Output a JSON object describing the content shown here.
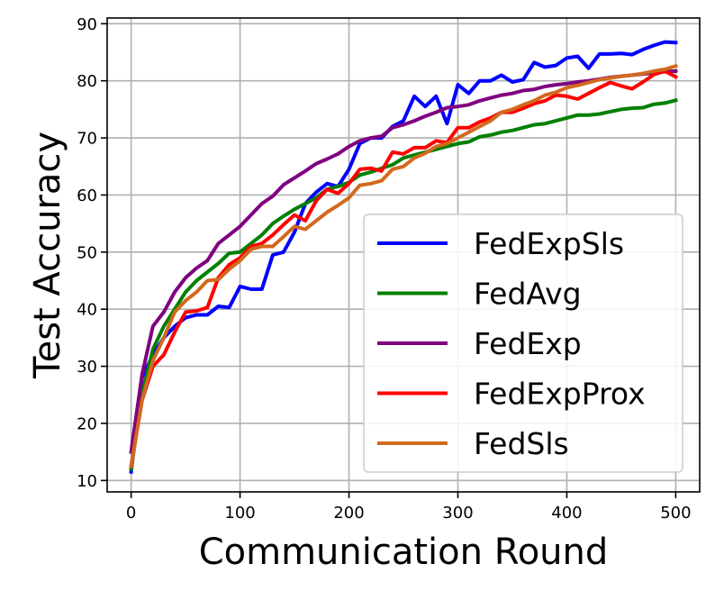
{
  "chart_data": {
    "type": "line",
    "xlabel": "Communication Round",
    "ylabel": "Test Accuracy",
    "xlim": [
      -22,
      522
    ],
    "ylim": [
      8,
      91
    ],
    "xticks": [
      0,
      100,
      200,
      300,
      400,
      500
    ],
    "yticks": [
      10,
      20,
      30,
      40,
      50,
      60,
      70,
      80,
      90
    ],
    "grid": true,
    "legend_position": "lower-right",
    "x": [
      0,
      10,
      20,
      30,
      40,
      50,
      60,
      70,
      80,
      90,
      100,
      110,
      120,
      130,
      140,
      150,
      160,
      170,
      180,
      190,
      200,
      210,
      220,
      230,
      240,
      250,
      260,
      270,
      280,
      290,
      300,
      310,
      320,
      330,
      340,
      350,
      360,
      370,
      380,
      390,
      400,
      410,
      420,
      430,
      440,
      450,
      460,
      470,
      480,
      490,
      500
    ],
    "series": [
      {
        "name": "FedExpSls",
        "color": "#0000ff",
        "values": [
          11.5,
          28,
          32,
          35,
          37,
          38.5,
          39,
          39,
          40.5,
          40.3,
          44,
          43.5,
          43.5,
          49.5,
          50,
          53.5,
          58.5,
          60.5,
          62,
          61.5,
          64.5,
          69,
          70,
          70,
          72,
          73,
          77.3,
          75.5,
          77.3,
          72.5,
          79.3,
          77.8,
          80,
          80,
          81,
          79.8,
          80.2,
          83.2,
          82.4,
          82.7,
          84,
          84.3,
          82.2,
          84.7,
          84.7,
          84.8,
          84.6,
          85.5,
          86.2,
          86.8,
          86.7
        ]
      },
      {
        "name": "FedAvg",
        "color": "#008000",
        "values": [
          12,
          25,
          33,
          37,
          40,
          43,
          45,
          46.5,
          48,
          49.8,
          50,
          51.5,
          53,
          55,
          56.3,
          57.5,
          58.5,
          59.5,
          61,
          61.5,
          62.2,
          63.5,
          64,
          64.7,
          65.3,
          66.5,
          67,
          67.5,
          68,
          68.5,
          69,
          69.3,
          70.2,
          70.5,
          71,
          71.3,
          71.8,
          72.3,
          72.5,
          73,
          73.5,
          74,
          74,
          74.2,
          74.6,
          75,
          75.2,
          75.3,
          75.9,
          76.1,
          76.6
        ]
      },
      {
        "name": "FedExp",
        "color": "#800080",
        "values": [
          15,
          28.5,
          37,
          39.5,
          43,
          45.5,
          47.2,
          48.5,
          51.5,
          53,
          54.5,
          56.5,
          58.5,
          59.8,
          61.8,
          63,
          64.2,
          65.5,
          66.3,
          67.2,
          68.5,
          69.5,
          70,
          70.3,
          71.8,
          72.3,
          73,
          73.8,
          74.5,
          75.3,
          75.5,
          75.8,
          76.5,
          77,
          77.5,
          77.8,
          78.3,
          78.5,
          79,
          79.3,
          79.5,
          79.8,
          80,
          80.3,
          80.6,
          80.8,
          81,
          81.2,
          81.4,
          81.6,
          81.7
        ]
      },
      {
        "name": "FedExpProx",
        "color": "#ff0000",
        "values": [
          12.5,
          24,
          30,
          32,
          36,
          39.5,
          39.7,
          40.3,
          45.5,
          47.8,
          49,
          51,
          51.5,
          53,
          54.8,
          56.5,
          55.5,
          59,
          61,
          60.3,
          62,
          64.5,
          64.7,
          64.2,
          67.5,
          67.2,
          68.3,
          68.3,
          69.5,
          69.2,
          71.8,
          71.8,
          72.8,
          73.5,
          74.5,
          74.5,
          75.2,
          76,
          76.5,
          77.5,
          77.3,
          76.8,
          77.8,
          78.8,
          79.7,
          79.1,
          78.6,
          79.8,
          81.1,
          81.7,
          80.7
        ]
      },
      {
        "name": "FedSls",
        "color": "#d2691e",
        "values": [
          12.5,
          24,
          31,
          35,
          39.5,
          41.5,
          43,
          45,
          45.2,
          47,
          48.5,
          50.5,
          51,
          51,
          52.7,
          54.5,
          54,
          55.5,
          57,
          58.2,
          59.5,
          61.7,
          62,
          62.5,
          64.5,
          65,
          66.5,
          67.3,
          68.5,
          69,
          70,
          71,
          72,
          73,
          74.5,
          75,
          75.8,
          76.5,
          77.5,
          78,
          78.8,
          79.2,
          79.7,
          80.2,
          80.5,
          80.8,
          81,
          81.3,
          81.7,
          82,
          82.6
        ]
      }
    ]
  }
}
